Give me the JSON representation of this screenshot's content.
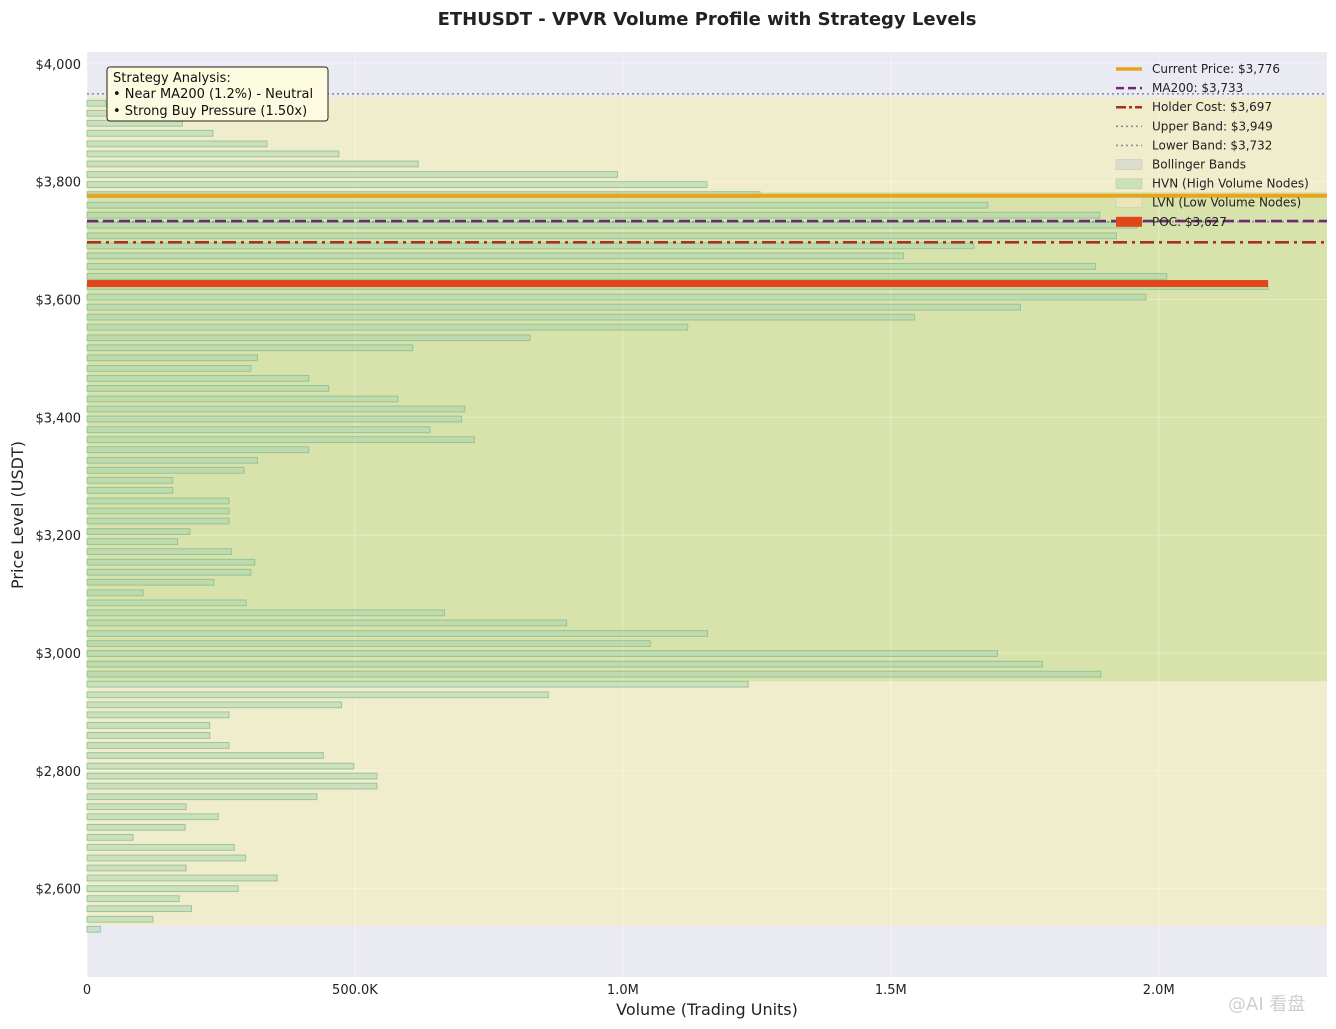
{
  "chart_data": {
    "type": "bar",
    "orientation": "horizontal",
    "title": "ETHUSDT - VPVR Volume Profile with Strategy Levels",
    "xlabel": "Volume (Trading Units)",
    "ylabel": "Price Level (USDT)",
    "xlim": [
      0,
      2314000
    ],
    "ylim": [
      2450,
      4020
    ],
    "x_ticks": [
      {
        "value": 0,
        "label": "0"
      },
      {
        "value": 500000,
        "label": "500.0K"
      },
      {
        "value": 1000000,
        "label": "1.0M"
      },
      {
        "value": 1500000,
        "label": "1.5M"
      },
      {
        "value": 2000000,
        "label": "2.0M"
      }
    ],
    "y_ticks": [
      {
        "value": 4000,
        "label": "$4,000"
      },
      {
        "value": 3800,
        "label": "$3,800"
      },
      {
        "value": 3600,
        "label": "$3,600"
      },
      {
        "value": 3400,
        "label": "$3,400"
      },
      {
        "value": 3200,
        "label": "$3,200"
      },
      {
        "value": 3000,
        "label": "$3,000"
      },
      {
        "value": 2800,
        "label": "$2,800"
      },
      {
        "value": 2600,
        "label": "$2,600"
      }
    ],
    "bin_size": 17,
    "bins": [
      {
        "price": 2531,
        "volume": 25000
      },
      {
        "price": 2548,
        "volume": 123000
      },
      {
        "price": 2566,
        "volume": 195000
      },
      {
        "price": 2583,
        "volume": 172000
      },
      {
        "price": 2600,
        "volume": 282000
      },
      {
        "price": 2618,
        "volume": 355000
      },
      {
        "price": 2635,
        "volume": 185000
      },
      {
        "price": 2652,
        "volume": 296000
      },
      {
        "price": 2670,
        "volume": 275000
      },
      {
        "price": 2687,
        "volume": 86000
      },
      {
        "price": 2704,
        "volume": 183000
      },
      {
        "price": 2722,
        "volume": 245000
      },
      {
        "price": 2739,
        "volume": 185000
      },
      {
        "price": 2756,
        "volume": 429000
      },
      {
        "price": 2774,
        "volume": 541000
      },
      {
        "price": 2791,
        "volume": 541000
      },
      {
        "price": 2808,
        "volume": 498000
      },
      {
        "price": 2826,
        "volume": 441000
      },
      {
        "price": 2843,
        "volume": 265000
      },
      {
        "price": 2860,
        "volume": 229000
      },
      {
        "price": 2877,
        "volume": 229000
      },
      {
        "price": 2895,
        "volume": 265000
      },
      {
        "price": 2912,
        "volume": 475000
      },
      {
        "price": 2929,
        "volume": 861000
      },
      {
        "price": 2947,
        "volume": 1234000
      },
      {
        "price": 2964,
        "volume": 1892000
      },
      {
        "price": 2981,
        "volume": 1783000
      },
      {
        "price": 2999,
        "volume": 1699000
      },
      {
        "price": 3016,
        "volume": 1051000
      },
      {
        "price": 3033,
        "volume": 1158000
      },
      {
        "price": 3051,
        "volume": 895000
      },
      {
        "price": 3068,
        "volume": 667000
      },
      {
        "price": 3085,
        "volume": 297000
      },
      {
        "price": 3102,
        "volume": 105000
      },
      {
        "price": 3120,
        "volume": 237000
      },
      {
        "price": 3137,
        "volume": 306000
      },
      {
        "price": 3154,
        "volume": 313000
      },
      {
        "price": 3172,
        "volume": 270000
      },
      {
        "price": 3189,
        "volume": 169000
      },
      {
        "price": 3206,
        "volume": 192000
      },
      {
        "price": 3224,
        "volume": 265000
      },
      {
        "price": 3241,
        "volume": 265000
      },
      {
        "price": 3258,
        "volume": 265000
      },
      {
        "price": 3276,
        "volume": 160000
      },
      {
        "price": 3293,
        "volume": 160000
      },
      {
        "price": 3310,
        "volume": 293000
      },
      {
        "price": 3327,
        "volume": 318000
      },
      {
        "price": 3345,
        "volume": 414000
      },
      {
        "price": 3362,
        "volume": 723000
      },
      {
        "price": 3379,
        "volume": 640000
      },
      {
        "price": 3397,
        "volume": 699000
      },
      {
        "price": 3414,
        "volume": 705000
      },
      {
        "price": 3431,
        "volume": 580000
      },
      {
        "price": 3449,
        "volume": 451000
      },
      {
        "price": 3466,
        "volume": 414000
      },
      {
        "price": 3483,
        "volume": 306000
      },
      {
        "price": 3501,
        "volume": 318000
      },
      {
        "price": 3518,
        "volume": 608000
      },
      {
        "price": 3535,
        "volume": 827000
      },
      {
        "price": 3553,
        "volume": 1121000
      },
      {
        "price": 3570,
        "volume": 1544000
      },
      {
        "price": 3587,
        "volume": 1742000
      },
      {
        "price": 3604,
        "volume": 1976000
      },
      {
        "price": 3622,
        "volume": 2204000
      },
      {
        "price": 3639,
        "volume": 2015000
      },
      {
        "price": 3656,
        "volume": 1882000
      },
      {
        "price": 3674,
        "volume": 1524000
      },
      {
        "price": 3691,
        "volume": 1655000
      },
      {
        "price": 3708,
        "volume": 1921000
      },
      {
        "price": 3726,
        "volume": 1960000
      },
      {
        "price": 3743,
        "volume": 1890000
      },
      {
        "price": 3760,
        "volume": 1681000
      },
      {
        "price": 3778,
        "volume": 1256000
      },
      {
        "price": 3795,
        "volume": 1157000
      },
      {
        "price": 3812,
        "volume": 990000
      },
      {
        "price": 3830,
        "volume": 618000
      },
      {
        "price": 3847,
        "volume": 470000
      },
      {
        "price": 3864,
        "volume": 336000
      },
      {
        "price": 3882,
        "volume": 235000
      },
      {
        "price": 3899,
        "volume": 178000
      },
      {
        "price": 3916,
        "volume": 55000
      },
      {
        "price": 3933,
        "volume": 35000
      }
    ],
    "hvn_zone": [
      2952,
      3782
    ],
    "bollinger_zone": [
      2537,
      3943
    ],
    "levels": {
      "current_price": 3776,
      "ma200": 3733,
      "holder_cost": 3697,
      "upper_band": 3949,
      "lower_band": 3732,
      "poc": 3627,
      "poc_volume": 2204000
    },
    "grid": true,
    "legend_placement": "upper right",
    "legend": [
      {
        "label": "Current Price: $3,776",
        "style": "solid-thick",
        "color": "#e8a320"
      },
      {
        "label": "MA200: $3,733",
        "style": "dashed",
        "color": "#6a2a78"
      },
      {
        "label": "Holder Cost: $3,697",
        "style": "dashdot",
        "color": "#a83220"
      },
      {
        "label": "Upper Band: $3,949",
        "style": "dotted",
        "color": "#8e8e96"
      },
      {
        "label": "Lower Band: $3,732",
        "style": "dotted",
        "color": "#8e8e96"
      },
      {
        "label": "Bollinger Bands",
        "style": "patch",
        "color": "#d7d8c8"
      },
      {
        "label": "HVN (High Volume Nodes)",
        "style": "patch",
        "color": "#c3ddb1"
      },
      {
        "label": "LVN (Low Volume Nodes)",
        "style": "patch",
        "color": "#ece8b8"
      },
      {
        "label": "POC: $3,627",
        "style": "bar",
        "color": "#e0461a"
      }
    ],
    "annotation": {
      "title": "Strategy Analysis:",
      "line1": "• Near MA200 (1.2%) - Neutral",
      "line2": "• Strong Buy Pressure (1.50x)"
    },
    "colors": {
      "axes_bg": "#eaeaf2",
      "bar_fill": "#a8d3b0",
      "bar_edge": "#86b98e",
      "hvn": "#c2da90",
      "bollinger": "#f3efb2",
      "current_price": "#e8a320",
      "ma200": "#6a2a78",
      "holder_cost": "#a83220",
      "bands": "#8e8e96",
      "poc": "#e0461a"
    }
  },
  "watermark": "@AI 看盘"
}
